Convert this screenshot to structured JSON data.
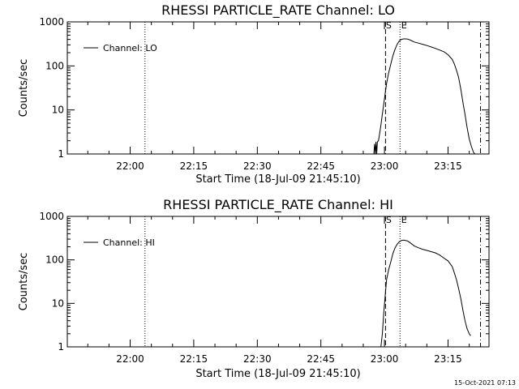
{
  "footer": {
    "timestamp": "15-Oct-2021 07:13"
  },
  "chart_data": [
    {
      "type": "line",
      "title": "RHESSI PARTICLE_RATE Channel: LO",
      "xlabel": "Start Time (18-Jul-09 21:45:10)",
      "ylabel": "Counts/sec",
      "y_scale": "log",
      "ylim": [
        1,
        1000
      ],
      "xlim": [
        "21:45:10",
        "23:24:40"
      ],
      "x_ticks": [
        "22:00",
        "22:15",
        "22:30",
        "22:45",
        "23:00",
        "23:15"
      ],
      "y_ticks": [
        "1",
        "10",
        "100",
        "1000"
      ],
      "legend": {
        "labels": [
          "Channel: LO"
        ],
        "placement": "top-left"
      },
      "markers": [
        {
          "label": "S",
          "time": "23:00:15",
          "style": "dashed"
        },
        {
          "label": "E",
          "time": "23:03:40",
          "style": "dotted"
        }
      ],
      "vertical_lines": [
        {
          "time": "22:03:30",
          "style": "dotted"
        },
        {
          "time": "23:22:40",
          "style": "dash-dot"
        }
      ],
      "series": [
        {
          "name": "Channel: LO",
          "x": [
            "22:57:30",
            "22:57:40",
            "22:57:50",
            "22:58:00",
            "22:58:10",
            "22:58:20",
            "22:58:35",
            "22:58:50",
            "22:59:10",
            "22:59:30",
            "23:00:00",
            "23:00:30",
            "23:01:00",
            "23:01:30",
            "23:02:00",
            "23:02:30",
            "23:03:00",
            "23:03:30",
            "23:04:00",
            "23:04:30",
            "23:05:00",
            "23:05:30",
            "23:06:00",
            "23:06:30",
            "23:07:00",
            "23:08:00",
            "23:09:00",
            "23:10:00",
            "23:11:00",
            "23:12:00",
            "23:13:00",
            "23:14:00",
            "23:15:00",
            "23:16:00",
            "23:16:30",
            "23:17:00",
            "23:17:30",
            "23:18:00",
            "23:18:30",
            "23:19:00",
            "23:19:30",
            "23:20:00",
            "23:20:30",
            "23:21:00",
            "23:21:20"
          ],
          "values": [
            1.0,
            1.7,
            1.0,
            1.9,
            1.0,
            1.9,
            2.0,
            2.8,
            4.5,
            8,
            18,
            40,
            70,
            110,
            170,
            240,
            310,
            370,
            400,
            410,
            410,
            405,
            390,
            370,
            350,
            330,
            310,
            290,
            270,
            250,
            230,
            210,
            180,
            140,
            110,
            80,
            55,
            30,
            15,
            8,
            4,
            2.2,
            1.5,
            1.1,
            1.0
          ]
        }
      ]
    },
    {
      "type": "line",
      "title": "RHESSI PARTICLE_RATE Channel: HI",
      "xlabel": "Start Time (18-Jul-09 21:45:10)",
      "ylabel": "Counts/sec",
      "y_scale": "log",
      "ylim": [
        1,
        1000
      ],
      "xlim": [
        "21:45:10",
        "23:24:40"
      ],
      "x_ticks": [
        "22:00",
        "22:15",
        "22:30",
        "22:45",
        "23:00",
        "23:15"
      ],
      "y_ticks": [
        "1",
        "10",
        "100",
        "1000"
      ],
      "legend": {
        "labels": [
          "Channel: HI"
        ],
        "placement": "top-left"
      },
      "markers": [
        {
          "label": "S",
          "time": "23:00:15",
          "style": "dashed"
        },
        {
          "label": "E",
          "time": "23:03:40",
          "style": "dotted"
        }
      ],
      "vertical_lines": [
        {
          "time": "22:03:30",
          "style": "dotted"
        },
        {
          "time": "23:22:40",
          "style": "dash-dot"
        }
      ],
      "series": [
        {
          "name": "Channel: HI",
          "x": [
            "22:59:10",
            "22:59:30",
            "22:59:50",
            "23:00:10",
            "23:00:30",
            "23:01:00",
            "23:01:30",
            "23:02:00",
            "23:02:30",
            "23:03:00",
            "23:03:30",
            "23:04:00",
            "23:04:30",
            "23:05:00",
            "23:05:30",
            "23:06:00",
            "23:06:30",
            "23:07:00",
            "23:08:00",
            "23:09:00",
            "23:10:00",
            "23:11:00",
            "23:12:00",
            "23:13:00",
            "23:14:00",
            "23:15:00",
            "23:16:00",
            "23:16:30",
            "23:17:00",
            "23:17:30",
            "23:18:00",
            "23:18:30",
            "23:19:00",
            "23:19:30",
            "23:20:00",
            "23:20:20"
          ],
          "values": [
            1.0,
            2,
            6,
            15,
            35,
            60,
            90,
            140,
            190,
            230,
            260,
            280,
            285,
            280,
            270,
            250,
            230,
            210,
            190,
            175,
            165,
            155,
            145,
            130,
            110,
            95,
            70,
            50,
            35,
            22,
            13,
            7,
            4,
            2.6,
            2.0,
            1.8
          ]
        }
      ]
    }
  ]
}
